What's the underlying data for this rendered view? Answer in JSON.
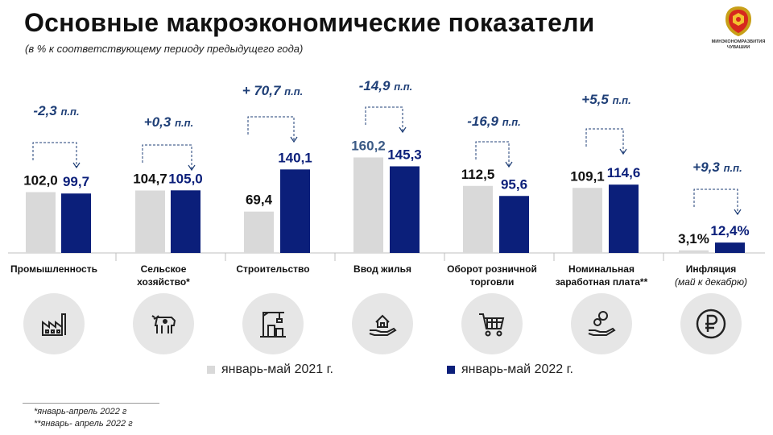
{
  "header": {
    "title": "Основные макроэкономические показатели",
    "subtitle": "(в % к соответствующему периоду предыдущего года)"
  },
  "logo": {
    "text_line1": "МИНЭКОНОМРАЗВИТИЯ",
    "text_line2": "ЧУВАШИИ"
  },
  "colors": {
    "series_2021": "#d9d9d9",
    "series_2022": "#0b1f7a",
    "delta_text": "#1f3f77",
    "arrow": "#1f3f77",
    "icon_bg": "#e6e6e6"
  },
  "chart_data": {
    "type": "bar",
    "categories": [
      {
        "label": "Промышленность",
        "note": ""
      },
      {
        "label": "Сельское хозяйство*",
        "note": ""
      },
      {
        "label": "Строительство",
        "note": ""
      },
      {
        "label": "Ввод жилья",
        "note": ""
      },
      {
        "label": "Оборот розничной торговли",
        "note": ""
      },
      {
        "label": "Номинальная заработная плата**",
        "note": ""
      },
      {
        "label": "Инфляция",
        "note": "(май к декабрю)"
      }
    ],
    "series": [
      {
        "name": "январь-май 2021 г.",
        "values": [
          102.0,
          104.7,
          69.4,
          160.2,
          112.5,
          109.1,
          3.1
        ],
        "labels": [
          "102,0",
          "104,7",
          "69,4",
          "160,2",
          "112,5",
          "109,1",
          "3,1%"
        ]
      },
      {
        "name": "январь-май 2022 г.",
        "values": [
          99.7,
          105.0,
          140.1,
          145.3,
          95.6,
          114.6,
          12.4
        ],
        "labels": [
          "99,7",
          "105,0",
          "140,1",
          "145,3",
          "95,6",
          "114,6",
          "12,4%"
        ]
      }
    ],
    "deltas": [
      "-2,3",
      "+0,3",
      "+ 70,7",
      "-14,9",
      "-16,9",
      "+5,5",
      "+9,3"
    ],
    "delta_unit": "п.п.",
    "title": "",
    "xlabel": "",
    "ylabel": ""
  },
  "icons": [
    "factory-icon",
    "cow-icon",
    "construction-crane-icon",
    "house-in-hand-icon",
    "shopping-cart-icon",
    "coins-in-hand-icon",
    "ruble-icon"
  ],
  "legend": {
    "item_2021": "январь-май 2021 г.",
    "item_2022": "январь-май 2022 г."
  },
  "footnotes": {
    "note1": "*январь-апрель  2022 г",
    "note2": "**январь-  апрель 2022 г"
  }
}
